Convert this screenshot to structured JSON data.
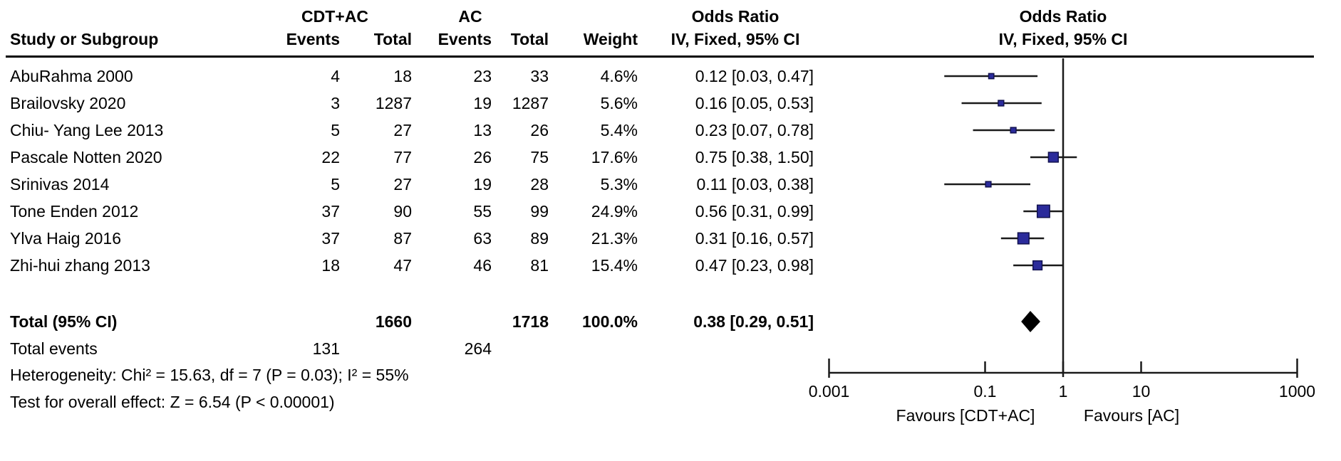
{
  "table": {
    "group1_label": "CDT+AC",
    "group2_label": "AC",
    "col_headers": {
      "study": "Study or Subgroup",
      "events": "Events",
      "total": "Total",
      "weight": "Weight",
      "or_header": "Odds Ratio",
      "method": "IV, Fixed, 95% CI"
    },
    "rows": [
      {
        "study": "AbuRahma 2000",
        "e1": "4",
        "t1": "18",
        "e2": "23",
        "t2": "33",
        "weight": "4.6%",
        "ci": "0.12 [0.03, 0.47]"
      },
      {
        "study": "Brailovsky 2020",
        "e1": "3",
        "t1": "1287",
        "e2": "19",
        "t2": "1287",
        "weight": "5.6%",
        "ci": "0.16 [0.05, 0.53]"
      },
      {
        "study": "Chiu- Yang Lee 2013",
        "e1": "5",
        "t1": "27",
        "e2": "13",
        "t2": "26",
        "weight": "5.4%",
        "ci": "0.23 [0.07, 0.78]"
      },
      {
        "study": "Pascale Notten 2020",
        "e1": "22",
        "t1": "77",
        "e2": "26",
        "t2": "75",
        "weight": "17.6%",
        "ci": "0.75 [0.38, 1.50]"
      },
      {
        "study": "Srinivas 2014",
        "e1": "5",
        "t1": "27",
        "e2": "19",
        "t2": "28",
        "weight": "5.3%",
        "ci": "0.11 [0.03, 0.38]"
      },
      {
        "study": "Tone Enden 2012",
        "e1": "37",
        "t1": "90",
        "e2": "55",
        "t2": "99",
        "weight": "24.9%",
        "ci": "0.56 [0.31, 0.99]"
      },
      {
        "study": "Ylva Haig 2016",
        "e1": "37",
        "t1": "87",
        "e2": "63",
        "t2": "89",
        "weight": "21.3%",
        "ci": "0.31 [0.16, 0.57]"
      },
      {
        "study": "Zhi-hui zhang 2013",
        "e1": "18",
        "t1": "47",
        "e2": "46",
        "t2": "81",
        "weight": "15.4%",
        "ci": "0.47 [0.23, 0.98]"
      }
    ],
    "total": {
      "label": "Total (95% CI)",
      "t1": "1660",
      "t2": "1718",
      "weight": "100.0%",
      "ci": "0.38 [0.29, 0.51]"
    },
    "total_events": {
      "label": "Total events",
      "e1": "131",
      "e2": "264"
    },
    "heterogeneity": "Heterogeneity: Chi² = 15.63, df = 7 (P = 0.03); I² = 55%",
    "overall_effect": "Test for overall effect: Z = 6.54 (P < 0.00001)"
  },
  "chart_data": {
    "type": "scatter",
    "subtype": "forest-plot",
    "title": "Odds Ratio",
    "effect_model": "IV, Fixed, 95% CI",
    "xscale": "log",
    "xlim": [
      0.001,
      1000
    ],
    "xticks": [
      "0.001",
      "0.1",
      "1",
      "10",
      "1000"
    ],
    "no_effect_line": 1,
    "favours_left": "Favours [CDT+AC]",
    "favours_right": "Favours [AC]",
    "studies": [
      {
        "name": "AbuRahma 2000",
        "or": 0.12,
        "ci_low": 0.03,
        "ci_high": 0.47,
        "weight_pct": 4.6
      },
      {
        "name": "Brailovsky 2020",
        "or": 0.16,
        "ci_low": 0.05,
        "ci_high": 0.53,
        "weight_pct": 5.6
      },
      {
        "name": "Chiu- Yang Lee 2013",
        "or": 0.23,
        "ci_low": 0.07,
        "ci_high": 0.78,
        "weight_pct": 5.4
      },
      {
        "name": "Pascale Notten 2020",
        "or": 0.75,
        "ci_low": 0.38,
        "ci_high": 1.5,
        "weight_pct": 17.6
      },
      {
        "name": "Srinivas 2014",
        "or": 0.11,
        "ci_low": 0.03,
        "ci_high": 0.38,
        "weight_pct": 5.3
      },
      {
        "name": "Tone Enden 2012",
        "or": 0.56,
        "ci_low": 0.31,
        "ci_high": 0.99,
        "weight_pct": 24.9
      },
      {
        "name": "Ylva Haig 2016",
        "or": 0.31,
        "ci_low": 0.16,
        "ci_high": 0.57,
        "weight_pct": 21.3
      },
      {
        "name": "Zhi-hui zhang 2013",
        "or": 0.47,
        "ci_low": 0.23,
        "ci_high": 0.98,
        "weight_pct": 15.4
      }
    ],
    "summary": {
      "name": "Total (95% CI)",
      "or": 0.38,
      "ci_low": 0.29,
      "ci_high": 0.51,
      "weight_pct": 100.0
    }
  },
  "colors": {
    "marker_fill": "#2b2b9b",
    "marker_stroke": "#12124f",
    "summary_diamond": "#000000",
    "line": "#1a1a1a",
    "text": "#000000",
    "background": "#ffffff"
  }
}
